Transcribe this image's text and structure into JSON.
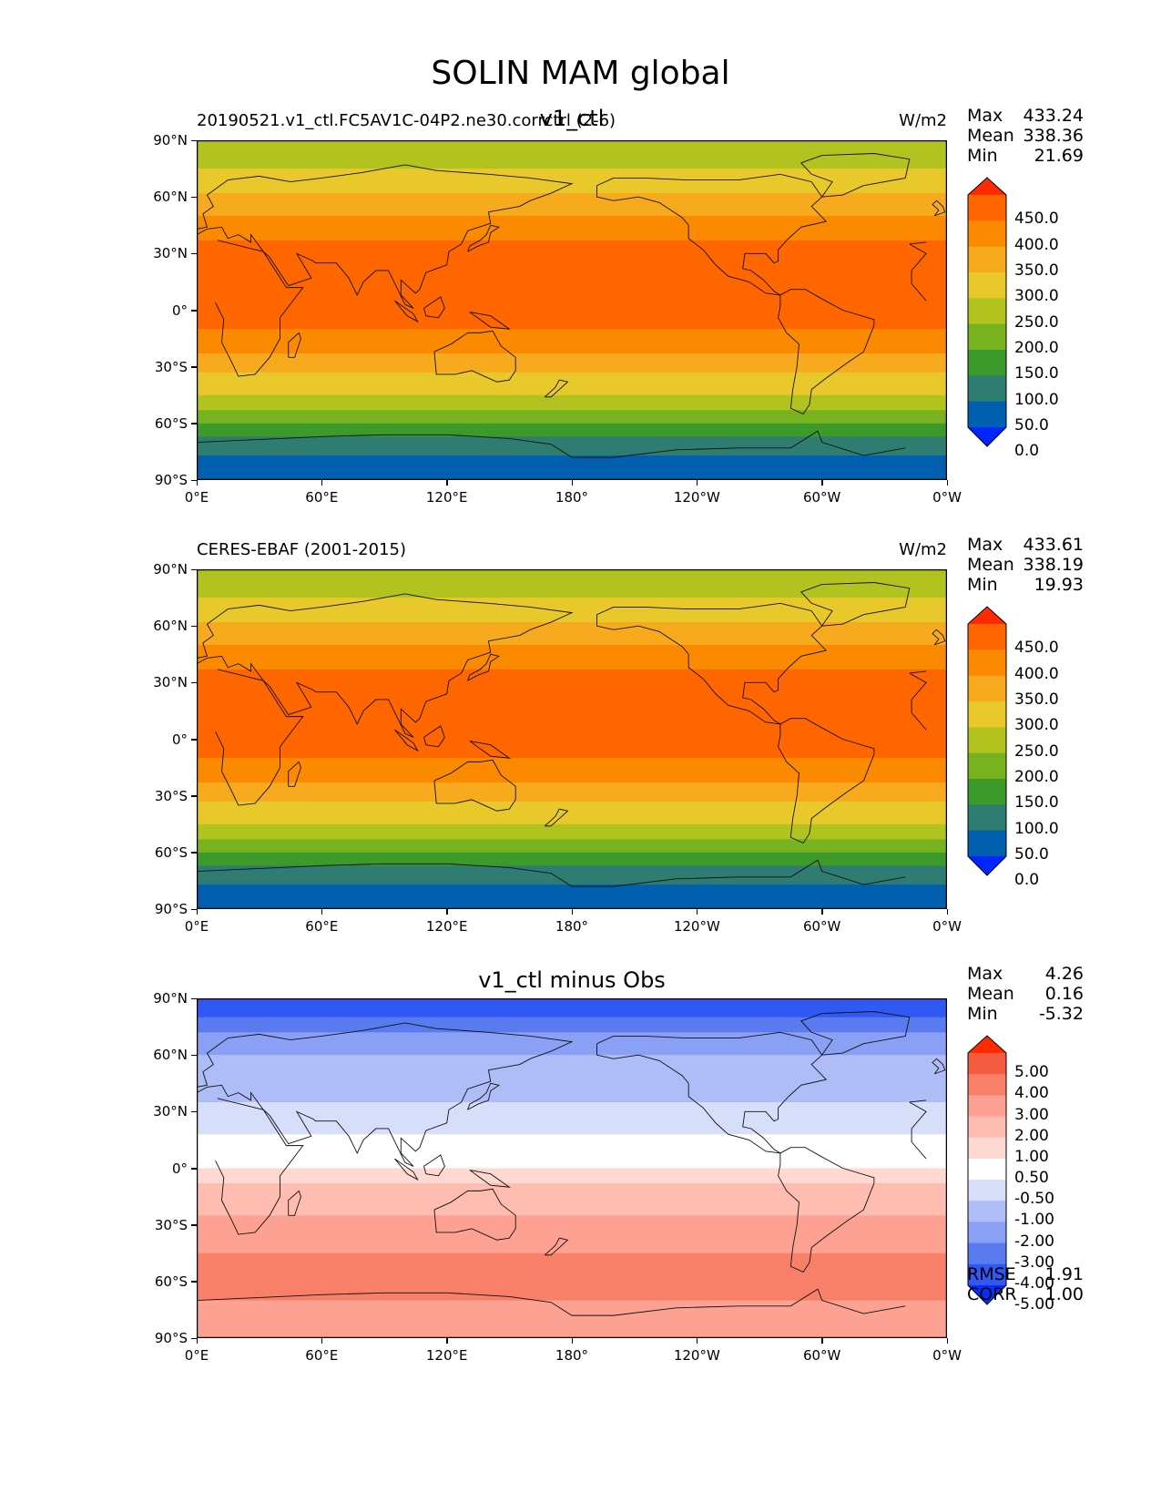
{
  "title": "SOLIN MAM global",
  "panels": [
    {
      "case_label": "20190521.v1_ctl.FC5AV1C-04P2.ne30.corrctrl (2-6)",
      "center_title": "v1_ctl",
      "units": "W/m2",
      "stats": [
        {
          "label": "Max",
          "value": "433.24"
        },
        {
          "label": "Mean",
          "value": "338.36"
        },
        {
          "label": "Min",
          "value": "21.69"
        }
      ],
      "colorbar_levels": [
        "450.0",
        "400.0",
        "350.0",
        "300.0",
        "250.0",
        "200.0",
        "150.0",
        "100.0",
        "50.0",
        "0.0"
      ]
    },
    {
      "case_label": "CERES-EBAF (2001-2015)",
      "center_title": "",
      "units": "W/m2",
      "stats": [
        {
          "label": "Max",
          "value": "433.61"
        },
        {
          "label": "Mean",
          "value": "338.19"
        },
        {
          "label": "Min",
          "value": "19.93"
        }
      ],
      "colorbar_levels": [
        "450.0",
        "400.0",
        "350.0",
        "300.0",
        "250.0",
        "200.0",
        "150.0",
        "100.0",
        "50.0",
        "0.0"
      ]
    },
    {
      "case_label": "",
      "center_title": "v1_ctl minus Obs",
      "units": "",
      "stats": [
        {
          "label": "Max",
          "value": "4.26"
        },
        {
          "label": "Mean",
          "value": "0.16"
        },
        {
          "label": "Min",
          "value": "-5.32"
        }
      ],
      "colorbar_levels": [
        "5.00",
        "4.00",
        "3.00",
        "2.00",
        "1.00",
        "0.50",
        "-0.50",
        "-1.00",
        "-2.00",
        "-3.00",
        "-4.00",
        "-5.00"
      ],
      "footer_stats": [
        {
          "label": "RMSE",
          "value": "1.91"
        },
        {
          "label": "CORR",
          "value": "1.00"
        }
      ]
    }
  ],
  "lat_ticks": [
    "90°N",
    "60°N",
    "30°N",
    "0°",
    "30°S",
    "60°S",
    "90°S"
  ],
  "lon_ticks": [
    "0°E",
    "60°E",
    "120°E",
    "180°",
    "120°W",
    "60°W",
    "0°W"
  ],
  "chart_data": [
    {
      "type": "heatmap",
      "title": "v1_ctl",
      "subtitle": "20190521.v1_ctl.FC5AV1C-04P2.ne30.corrctrl (2-6)",
      "units": "W/m2",
      "levels": [
        0,
        50,
        100,
        150,
        200,
        250,
        300,
        350,
        400,
        450
      ],
      "colors": [
        "#0026ff",
        "#0060b0",
        "#2e7c72",
        "#3b9a2a",
        "#78b21e",
        "#b2c21e",
        "#e8c82a",
        "#f7aa1e",
        "#fb8a00",
        "#ff6600",
        "#ff2a00"
      ],
      "xlim": [
        0,
        360
      ],
      "ylim": [
        -90,
        90
      ],
      "latitude_bands": [
        {
          "lat": [
            75,
            90
          ],
          "level": "200-250"
        },
        {
          "lat": [
            62,
            75
          ],
          "level": "250-300"
        },
        {
          "lat": [
            50,
            62
          ],
          "level": "300-350"
        },
        {
          "lat": [
            37,
            50
          ],
          "level": "350-400"
        },
        {
          "lat": [
            -10,
            37
          ],
          "level": "400-450"
        },
        {
          "lat": [
            -23,
            -10
          ],
          "level": "350-400"
        },
        {
          "lat": [
            -33,
            -23
          ],
          "level": "300-350"
        },
        {
          "lat": [
            -45,
            -33
          ],
          "level": "250-300"
        },
        {
          "lat": [
            -53,
            -45
          ],
          "level": "200-250"
        },
        {
          "lat": [
            -60,
            -53
          ],
          "level": "150-200"
        },
        {
          "lat": [
            -67,
            -60
          ],
          "level": "100-150"
        },
        {
          "lat": [
            -77,
            -67
          ],
          "level": "50-100"
        },
        {
          "lat": [
            -90,
            -77
          ],
          "level": "0-50"
        }
      ],
      "stats": {
        "Max": 433.24,
        "Mean": 338.36,
        "Min": 21.69
      }
    },
    {
      "type": "heatmap",
      "title": "CERES-EBAF (2001-2015)",
      "units": "W/m2",
      "levels": [
        0,
        50,
        100,
        150,
        200,
        250,
        300,
        350,
        400,
        450
      ],
      "colors": [
        "#0026ff",
        "#0060b0",
        "#2e7c72",
        "#3b9a2a",
        "#78b21e",
        "#b2c21e",
        "#e8c82a",
        "#f7aa1e",
        "#fb8a00",
        "#ff6600",
        "#ff2a00"
      ],
      "xlim": [
        0,
        360
      ],
      "ylim": [
        -90,
        90
      ],
      "latitude_bands": [
        {
          "lat": [
            75,
            90
          ],
          "level": "200-250"
        },
        {
          "lat": [
            62,
            75
          ],
          "level": "250-300"
        },
        {
          "lat": [
            50,
            62
          ],
          "level": "300-350"
        },
        {
          "lat": [
            37,
            50
          ],
          "level": "350-400"
        },
        {
          "lat": [
            -10,
            37
          ],
          "level": "400-450"
        },
        {
          "lat": [
            -23,
            -10
          ],
          "level": "350-400"
        },
        {
          "lat": [
            -33,
            -23
          ],
          "level": "300-350"
        },
        {
          "lat": [
            -45,
            -33
          ],
          "level": "250-300"
        },
        {
          "lat": [
            -53,
            -45
          ],
          "level": "200-250"
        },
        {
          "lat": [
            -60,
            -53
          ],
          "level": "150-200"
        },
        {
          "lat": [
            -67,
            -60
          ],
          "level": "100-150"
        },
        {
          "lat": [
            -77,
            -67
          ],
          "level": "50-100"
        },
        {
          "lat": [
            -90,
            -77
          ],
          "level": "0-50"
        }
      ],
      "stats": {
        "Max": 433.61,
        "Mean": 338.19,
        "Min": 19.93
      }
    },
    {
      "type": "heatmap",
      "title": "v1_ctl minus Obs",
      "levels": [
        -5,
        -4,
        -3,
        -2,
        -1,
        -0.5,
        0.5,
        1,
        2,
        3,
        4,
        5
      ],
      "colors": [
        "#0030ff",
        "#2f58f5",
        "#5a7af0",
        "#8aa0f5",
        "#aebcf7",
        "#d6def9",
        "#ffffff",
        "#ffd8d2",
        "#ffbcb0",
        "#fda292",
        "#f87f68",
        "#f35c40",
        "#ff2a00"
      ],
      "xlim": [
        0,
        360
      ],
      "ylim": [
        -90,
        90
      ],
      "latitude_bands": [
        {
          "lat": [
            80,
            90
          ],
          "level": "-5--4"
        },
        {
          "lat": [
            72,
            80
          ],
          "level": "-4--3"
        },
        {
          "lat": [
            60,
            72
          ],
          "level": "-3--2"
        },
        {
          "lat": [
            35,
            60
          ],
          "level": "-2--1"
        },
        {
          "lat": [
            18,
            35
          ],
          "level": "-1--0.5"
        },
        {
          "lat": [
            0,
            18
          ],
          "level": "-0.5-0.5"
        },
        {
          "lat": [
            -8,
            0
          ],
          "level": "0.5-1"
        },
        {
          "lat": [
            -25,
            -8
          ],
          "level": "1-2"
        },
        {
          "lat": [
            -45,
            -25
          ],
          "level": "2-3"
        },
        {
          "lat": [
            -70,
            -45
          ],
          "level": "3-4"
        },
        {
          "lat": [
            -90,
            -70
          ],
          "level": "2-3"
        }
      ],
      "stats": {
        "Max": 4.26,
        "Mean": 0.16,
        "Min": -5.32,
        "RMSE": 1.91,
        "CORR": 1.0
      }
    }
  ]
}
